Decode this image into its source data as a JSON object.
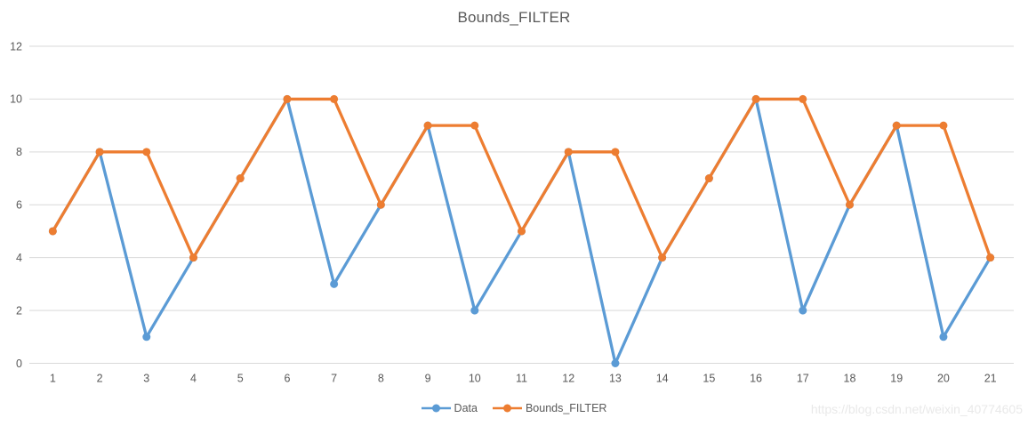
{
  "chart_data": {
    "type": "line",
    "title": "Bounds_FILTER",
    "x": [
      1,
      2,
      3,
      4,
      5,
      6,
      7,
      8,
      9,
      10,
      11,
      12,
      13,
      14,
      15,
      16,
      17,
      18,
      19,
      20,
      21
    ],
    "series": [
      {
        "name": "Data",
        "color": "#5B9BD5",
        "marker": "circle",
        "values": [
          5,
          8,
          1,
          4,
          7,
          10,
          3,
          6,
          9,
          2,
          5,
          8,
          0,
          4,
          7,
          10,
          2,
          6,
          9,
          1,
          4
        ]
      },
      {
        "name": "Bounds_FILTER",
        "color": "#ED7D31",
        "marker": "circle",
        "values": [
          5,
          8,
          8,
          4,
          7,
          10,
          10,
          6,
          9,
          9,
          5,
          8,
          8,
          4,
          7,
          10,
          10,
          6,
          9,
          9,
          4
        ]
      }
    ],
    "ylim": [
      0,
      12
    ],
    "yticks": [
      0,
      2,
      4,
      6,
      8,
      10,
      12
    ],
    "xlabel": "",
    "ylabel": "",
    "grid": "horizontal-only",
    "legend_position": "bottom-center"
  },
  "watermark": {
    "text": "https://blog.csdn.net/weixin_40774605"
  },
  "colors": {
    "background": "#FFFFFF",
    "text": "#595959",
    "gridline": "#D9D9D9",
    "watermark": "#E9E9E9"
  }
}
